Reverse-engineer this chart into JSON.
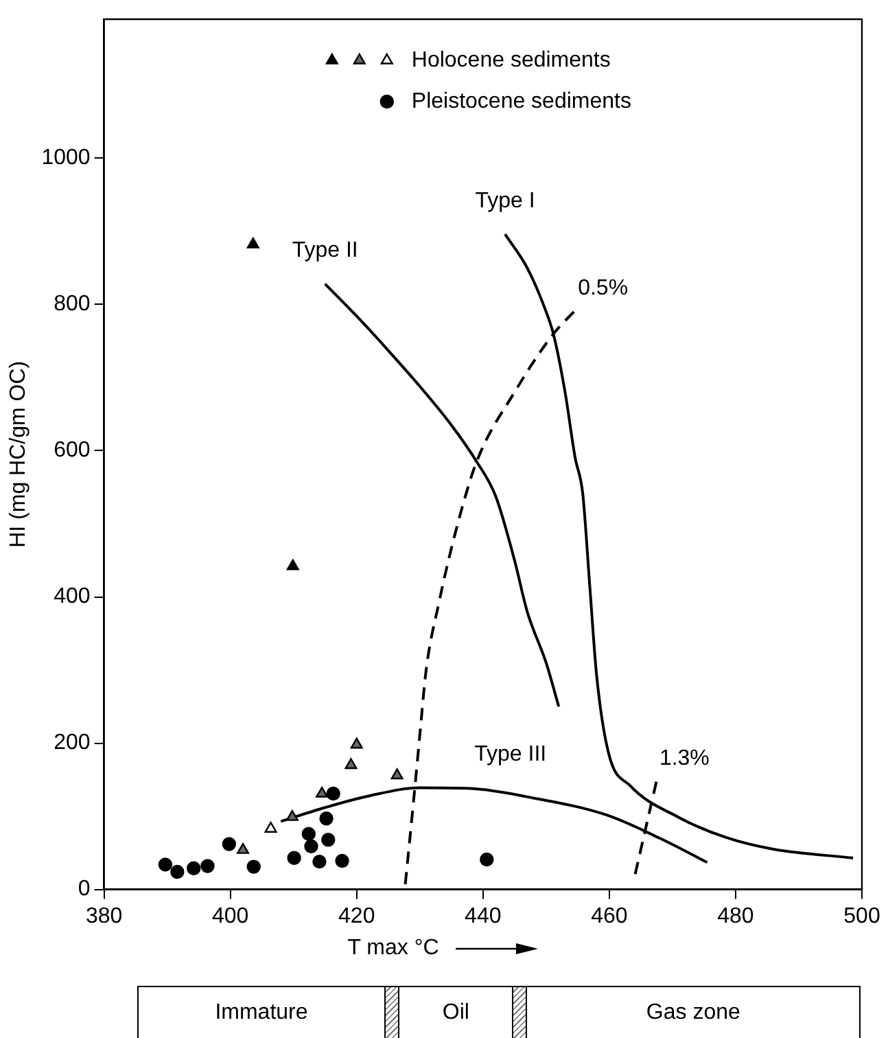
{
  "chart_data": {
    "type": "scatter",
    "xlabel": "T max °C",
    "ylabel": "HI (mg HC/gm OC)",
    "xlim": [
      380,
      500
    ],
    "ylim": [
      0,
      1190
    ],
    "xticks": [
      380,
      400,
      420,
      440,
      460,
      480,
      500
    ],
    "yticks": [
      0,
      200,
      400,
      600,
      800,
      1000
    ],
    "grid": false,
    "legend": "top",
    "series": [
      {
        "marker": "triangle",
        "color": "#000000",
        "x": [
          403.6,
          409.9
        ],
        "values": [
          882,
          442
        ]
      },
      {
        "marker": "triangle",
        "color": "#666666",
        "x": [
          402,
          409.8,
          414.5,
          419.1,
          420,
          426.4
        ],
        "values": [
          54,
          99,
          131,
          170,
          198,
          156
        ]
      },
      {
        "name": "Holocene sediments",
        "marker": "triangle",
        "color": "#ffffff",
        "x": [
          406.4
        ],
        "values": [
          83
        ]
      },
      {
        "name": "Pleistocene sediments",
        "marker": "circle",
        "color": "#000000",
        "x": [
          389.7,
          391.6,
          394.2,
          396.4,
          399.8,
          403.7,
          410.1,
          412.4,
          412.8,
          414.1,
          415.2,
          415.5,
          416.3,
          417.7,
          440.6
        ],
        "values": [
          34,
          24,
          29,
          32,
          62,
          31,
          43,
          76,
          59,
          38,
          97,
          68,
          131,
          39,
          41
        ]
      },
      {
        "name": "Type I",
        "type": "line",
        "marker": "none",
        "line_style": "solid",
        "color": "#000000",
        "x": [
          443.5,
          447,
          450,
          451.2,
          453,
          454.6,
          455.8,
          456.9,
          458,
          459.9,
          463.3,
          470.9,
          478.5,
          486,
          498.6
        ],
        "values": [
          896,
          850,
          790,
          758,
          680,
          590,
          541,
          416,
          292,
          186,
          142,
          99,
          71,
          55,
          43
        ]
      },
      {
        "name": "Type II",
        "type": "line",
        "marker": "none",
        "line_style": "solid",
        "color": "#000000",
        "x": [
          415,
          420,
          425,
          430,
          435,
          439,
          442,
          445,
          447,
          450,
          452
        ],
        "values": [
          828,
          784,
          737,
          688,
          635,
          585,
          538,
          450,
          380,
          310,
          250
        ]
      },
      {
        "name": "Type III",
        "type": "line",
        "marker": "none",
        "line_style": "solid",
        "color": "#000000",
        "x": [
          408,
          415,
          422,
          430,
          438,
          448,
          459.5,
          468,
          475.5
        ],
        "values": [
          93,
          112,
          128,
          139,
          138,
          125,
          102,
          70,
          37
        ]
      },
      {
        "name": "0.5%",
        "type": "line",
        "marker": "none",
        "line_style": "dashed",
        "color": "#000000",
        "x": [
          427.7,
          429,
          430,
          431,
          433,
          436,
          439,
          445,
          451,
          454.6
        ],
        "values": [
          7,
          120,
          211,
          300,
          391,
          500,
          585,
          680,
          758,
          792
        ]
      },
      {
        "name": "1.3%",
        "type": "line",
        "marker": "none",
        "line_style": "dashed",
        "color": "#000000",
        "x": [
          464.1,
          467.5
        ],
        "values": [
          21,
          149
        ]
      }
    ],
    "annotations": [
      "Immature",
      "Oil",
      "Gas zone"
    ]
  }
}
